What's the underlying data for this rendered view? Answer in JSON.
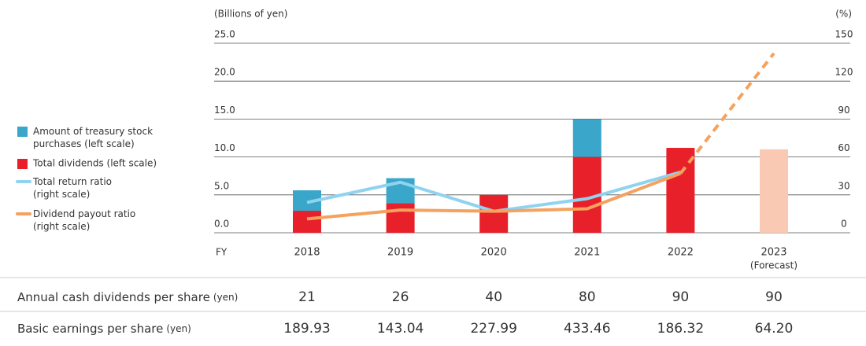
{
  "chart_data": {
    "type": "bar-line",
    "y_label": "(Billions of yen)",
    "y2_label": "(%)",
    "x_label": "FY",
    "categories": [
      "2018",
      "2019",
      "2020",
      "2021",
      "2022",
      "2023"
    ],
    "forecast_label": "(Forecast)",
    "forecast_index": 5,
    "forecast_color": "#f9c9b3",
    "ylim": [
      0,
      25
    ],
    "yticks": [
      {
        "value": 0,
        "label": "0.0"
      },
      {
        "value": 5,
        "label": "5.0"
      },
      {
        "value": 10,
        "label": "10.0"
      },
      {
        "value": 15,
        "label": "15.0"
      },
      {
        "value": 20,
        "label": "20.0"
      },
      {
        "value": 25,
        "label": "25.0"
      }
    ],
    "y2lim": [
      0,
      150
    ],
    "y2ticks": [
      0,
      30,
      60,
      90,
      120,
      150
    ],
    "series": [
      {
        "name": "Amount of treasury stock purchases (left scale)",
        "kind": "bar",
        "color": "#3aa6c9",
        "values": [
          2.7,
          3.3,
          null,
          5.0,
          null,
          null
        ]
      },
      {
        "name": "Total dividends (left scale)",
        "kind": "bar",
        "color": "#e8202a",
        "values": [
          2.9,
          3.9,
          5.0,
          10.0,
          11.2,
          11.0
        ]
      },
      {
        "name": "Total return ratio (right scale)",
        "kind": "line",
        "axis": "y2",
        "color": "#8fd3f0",
        "values": [
          24,
          40,
          17,
          27,
          48,
          null
        ]
      },
      {
        "name": "Dividend payout ratio (right scale)",
        "kind": "line",
        "axis": "y2",
        "color": "#f4a25e",
        "values": [
          11,
          18,
          17,
          19,
          47,
          142
        ]
      }
    ]
  },
  "table": {
    "rows": [
      {
        "label": "Annual cash dividends per share",
        "unit": "(yen)",
        "values": [
          "21",
          "26",
          "40",
          "80",
          "90",
          "90"
        ]
      },
      {
        "label": "Basic earnings per share",
        "unit": "(yen)",
        "values": [
          "189.93",
          "143.04",
          "227.99",
          "433.46",
          "186.32",
          "64.20"
        ]
      }
    ]
  }
}
